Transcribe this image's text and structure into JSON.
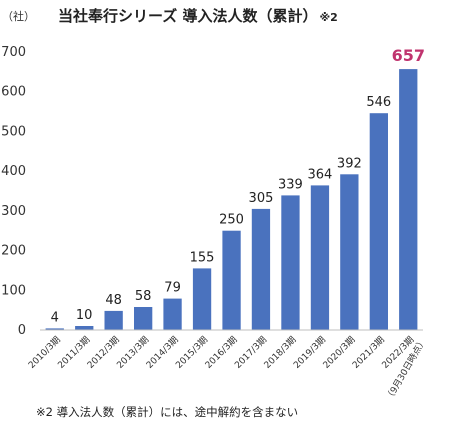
{
  "chart_data": {
    "type": "bar",
    "title": "当社奉行シリーズ 導入法人数（累計）",
    "title_note": "※2",
    "unit_label": "（社）",
    "categories": [
      "2010/3期",
      "2011/3期",
      "2012/3期",
      "2013/3期",
      "2014/3期",
      "2015/3期",
      "2016/3期",
      "2017/3期",
      "2018/3期",
      "2019/3期",
      "2020/3期",
      "2021/3期",
      "2022/3期"
    ],
    "values": [
      4,
      10,
      48,
      58,
      79,
      155,
      250,
      305,
      339,
      364,
      392,
      546,
      657
    ],
    "value_labels": [
      "4",
      "10",
      "48",
      "58",
      "79",
      "155",
      "250",
      "305",
      "339",
      "364",
      "392",
      "546",
      "657"
    ],
    "highlight_index": 12,
    "x_note": "（9月30日時点）",
    "ylim": [
      0,
      700
    ],
    "yticks": [
      "0",
      "100",
      "200",
      "300",
      "400",
      "500",
      "600",
      "700"
    ],
    "grid": false,
    "legend": "none",
    "colors": {
      "bar": "#4a72be",
      "highlight_label": "#c0336e"
    }
  },
  "footnote": "※2 導入法人数（累計）には、途中解約を含まない"
}
